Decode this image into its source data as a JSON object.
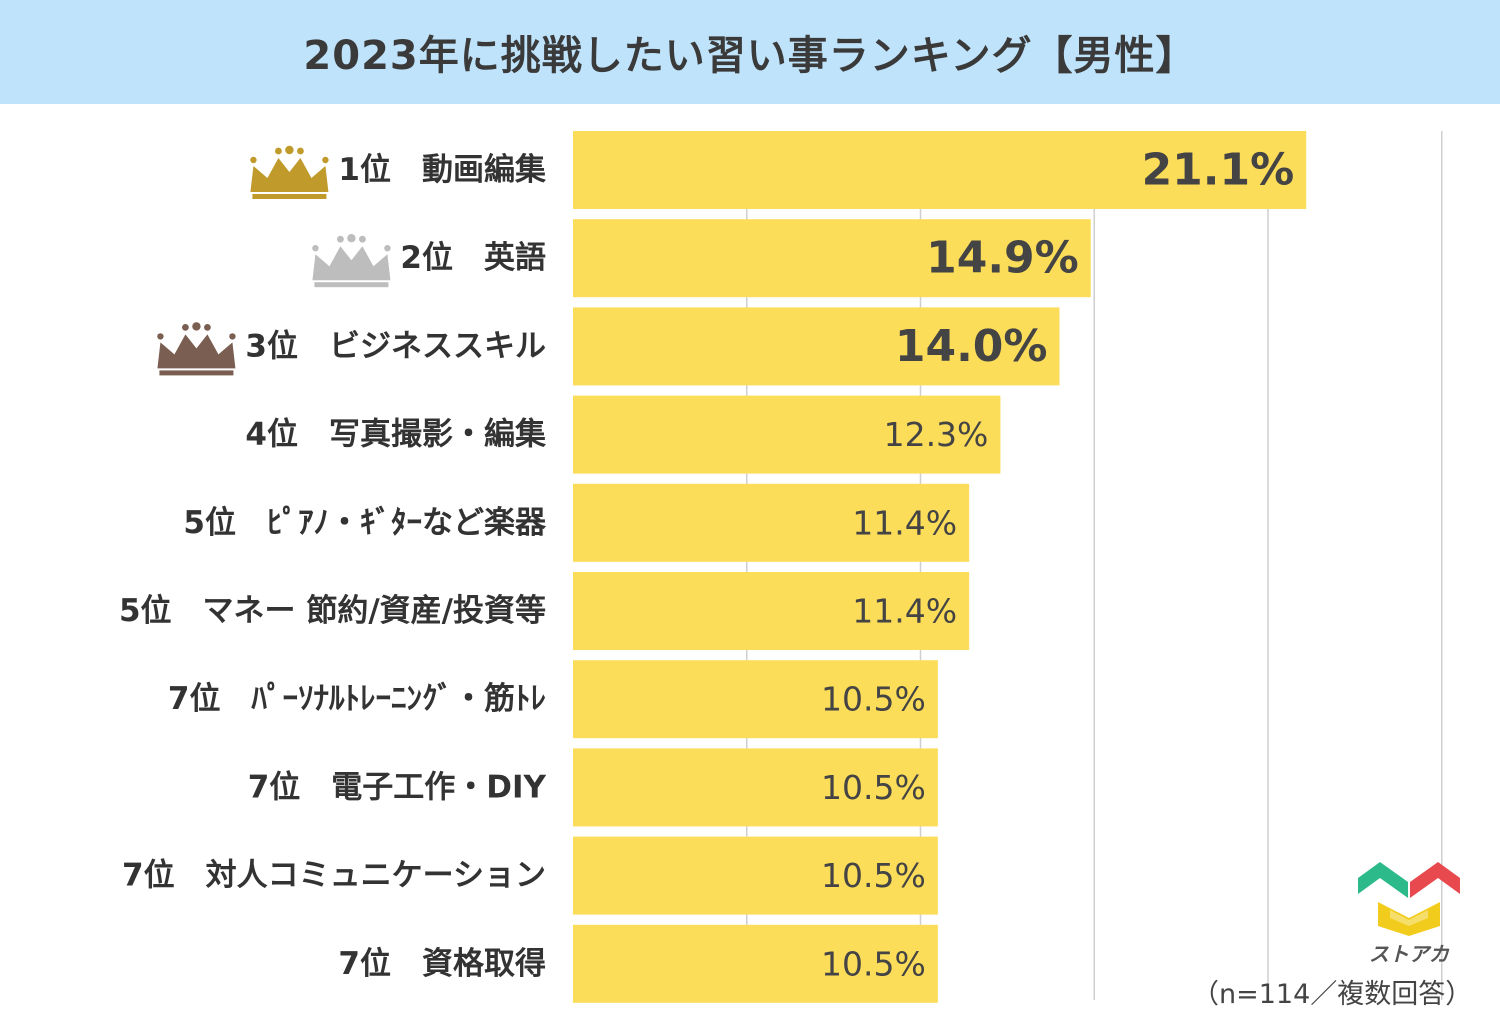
{
  "title": "2023年に挑戦したい習い事ランキング【男性】",
  "footnote": "（n=114／複数回答）",
  "logo": {
    "name": "ストアカ",
    "colors": {
      "green": "#2dba8a",
      "red": "#e8494f",
      "yellow": "#f2cc1c"
    }
  },
  "colors": {
    "bar": "#fcdd5a",
    "title_bg": "#bfe3fa",
    "grid": "#cfcfcf",
    "crown_gold": "#c09a2a",
    "crown_silver": "#bdbdbd",
    "crown_bronze": "#7b5e52"
  },
  "chart_data": {
    "type": "bar",
    "orientation": "horizontal",
    "title": "2023年に挑戦したい習い事ランキング【男性】",
    "unit": "%",
    "xlim": [
      0,
      25
    ],
    "grid": true,
    "categories": [
      "1位　動画編集",
      "2位　英語",
      "3位　ビジネススキル",
      "4位　写真撮影・編集",
      "5位　ﾋﾟｱﾉ・ｷﾞﾀｰなど楽器",
      "5位　マネー 節約/資産/投資等",
      "7位　ﾊﾟｰｿﾅﾙﾄﾚｰﾆﾝｸﾞ・筋ﾄﾚ",
      "7位　電子工作・DIY",
      "7位　対人コミュニケーション",
      "7位　資格取得"
    ],
    "values": [
      21.1,
      14.9,
      14.0,
      12.3,
      11.4,
      11.4,
      10.5,
      10.5,
      10.5,
      10.5
    ],
    "value_labels": [
      "21.1%",
      "14.9%",
      "14.0%",
      "12.3%",
      "11.4%",
      "11.4%",
      "10.5%",
      "10.5%",
      "10.5%",
      "10.5%"
    ],
    "crowns": [
      "gold",
      "silver",
      "bronze"
    ]
  }
}
